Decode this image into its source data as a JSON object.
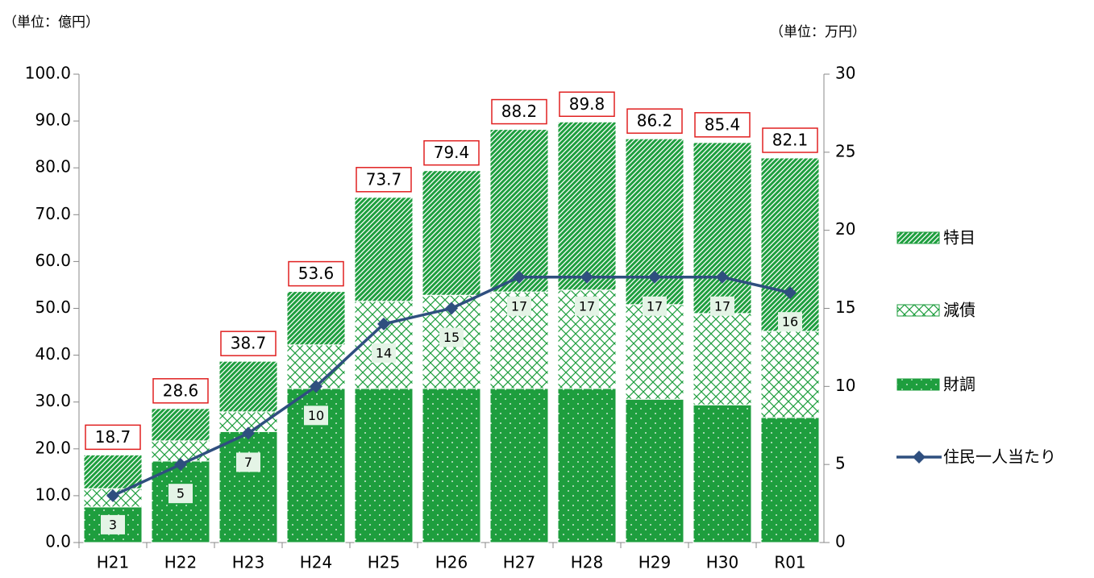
{
  "chart_data": {
    "type": "bar",
    "stacked": true,
    "y_label": "（単位：億円）",
    "y2_label": "（単位：万円）",
    "categories": [
      "H21",
      "H22",
      "H23",
      "H24",
      "H25",
      "H26",
      "H27",
      "H28",
      "H29",
      "H30",
      "R01"
    ],
    "series": [
      {
        "name": "財調",
        "color": "#1e9e3e",
        "pattern": "dots",
        "values": [
          7.6,
          17.4,
          23.7,
          32.9,
          32.9,
          32.9,
          32.9,
          32.9,
          30.6,
          29.4,
          26.7
        ]
      },
      {
        "name": "減債",
        "color": "#1e9e3e",
        "pattern": "cross",
        "values": [
          3.9,
          4.3,
          4.2,
          9.3,
          18.6,
          19.9,
          20.6,
          21.0,
          20.2,
          19.5,
          18.4
        ]
      },
      {
        "name": "特目",
        "color": "#1e9e3e",
        "pattern": "diagonal",
        "values": [
          7.2,
          6.9,
          10.8,
          11.4,
          22.2,
          26.6,
          34.7,
          35.9,
          35.4,
          36.5,
          37.0
        ]
      },
      {
        "name": "住民一人当たり",
        "type": "line",
        "axis": "y2",
        "color": "#2f4f7f",
        "values": [
          3,
          5,
          7,
          10,
          14,
          15,
          17,
          17,
          17,
          17,
          16
        ]
      }
    ],
    "totals": [
      18.7,
      28.6,
      38.7,
      53.6,
      73.7,
      79.4,
      88.2,
      89.8,
      86.2,
      85.4,
      82.1
    ],
    "ylim": [
      0,
      100
    ],
    "yticks": [
      {
        "value": 0,
        "label": "0.0"
      },
      {
        "value": 10,
        "label": "10.0"
      },
      {
        "value": 20,
        "label": "20.0"
      },
      {
        "value": 30,
        "label": "30.0"
      },
      {
        "value": 40,
        "label": "40.0"
      },
      {
        "value": 50,
        "label": "50.0"
      },
      {
        "value": 60,
        "label": "60.0"
      },
      {
        "value": 70,
        "label": "70.0"
      },
      {
        "value": 80,
        "label": "80.0"
      },
      {
        "value": 90,
        "label": "90.0"
      },
      {
        "value": 100,
        "label": "100.0"
      }
    ],
    "y2lim": [
      0,
      30
    ],
    "y2ticks": [
      0,
      5,
      10,
      15,
      20,
      25,
      30
    ],
    "grid": false,
    "legend": "right"
  }
}
